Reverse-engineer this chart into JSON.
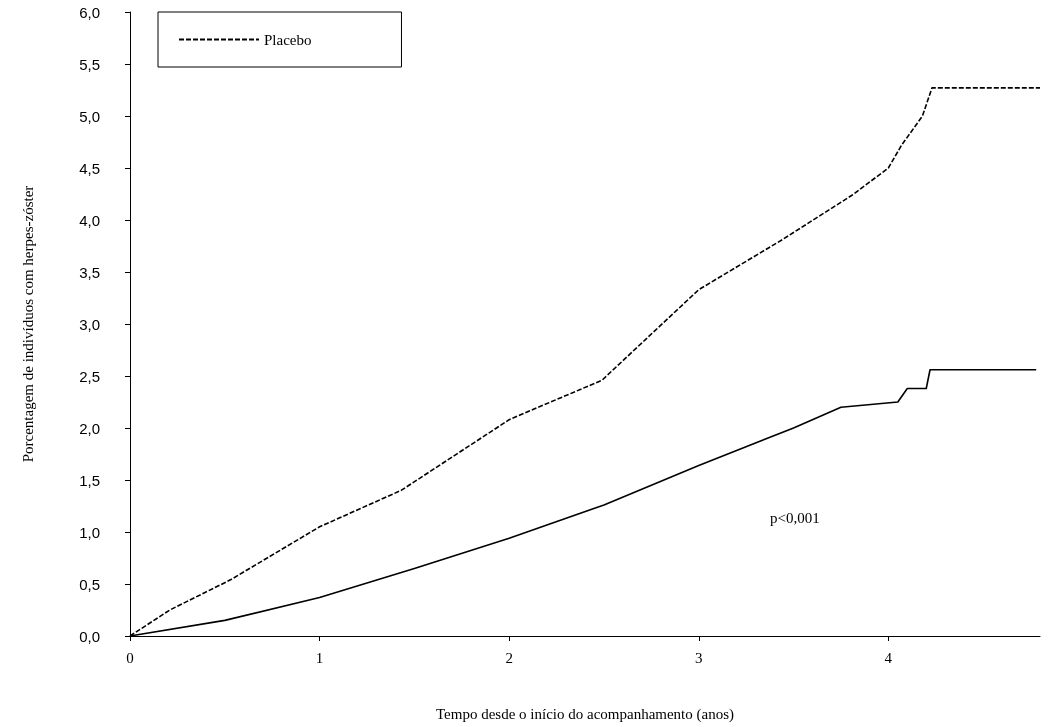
{
  "chart_data": {
    "type": "line",
    "xlabel": "Tempo desde o início do acompanhamento (anos)",
    "ylabel": "Porcentagem de indivíduos com herpes-zóster",
    "annotations": [
      "p<0,001"
    ],
    "series": [
      {
        "color": "#000000",
        "line_style": "solid",
        "x": [
          0,
          0.5,
          1,
          1.5,
          2,
          2.5,
          3,
          3.5,
          3.75,
          4.05,
          4.1,
          4.2,
          4.22,
          4.78
        ],
        "values": [
          0,
          0.15,
          0.37,
          0.65,
          0.94,
          1.26,
          1.64,
          2.0,
          2.2,
          2.25,
          2.38,
          2.38,
          2.56,
          2.56
        ]
      },
      {
        "name": "Placebo",
        "color": "#000000",
        "line_style": "dashed",
        "x": [
          0,
          0.21,
          0.53,
          1,
          1.43,
          2,
          2.49,
          3,
          3.44,
          3.81,
          4,
          4.07,
          4.18,
          4.23,
          4.8
        ],
        "values": [
          0,
          0.25,
          0.54,
          1.05,
          1.4,
          2.08,
          2.46,
          3.33,
          3.81,
          4.24,
          4.5,
          4.72,
          5.0,
          5.27,
          5.27
        ]
      }
    ],
    "xlim": [
      0,
      4.8
    ],
    "xticks": [
      0,
      1,
      2,
      3,
      4
    ],
    "ylim": [
      0,
      6
    ],
    "yticks": [
      {
        "value": 0,
        "label": "0,0"
      },
      {
        "value": 0.5,
        "label": "0,5"
      },
      {
        "value": 1,
        "label": "1,0"
      },
      {
        "value": 1.5,
        "label": "1,5"
      },
      {
        "value": 2,
        "label": "2,0"
      },
      {
        "value": 2.5,
        "label": "2,5"
      },
      {
        "value": 3,
        "label": "3,0"
      },
      {
        "value": 3.5,
        "label": "3,5"
      },
      {
        "value": 4,
        "label": "4,0"
      },
      {
        "value": 4.5,
        "label": "4,5"
      },
      {
        "value": 5,
        "label": "5,0"
      },
      {
        "value": 5.5,
        "label": "5,5"
      },
      {
        "value": 6,
        "label": "6,0"
      }
    ],
    "grid": false,
    "legend": "top left",
    "marker": "none"
  }
}
